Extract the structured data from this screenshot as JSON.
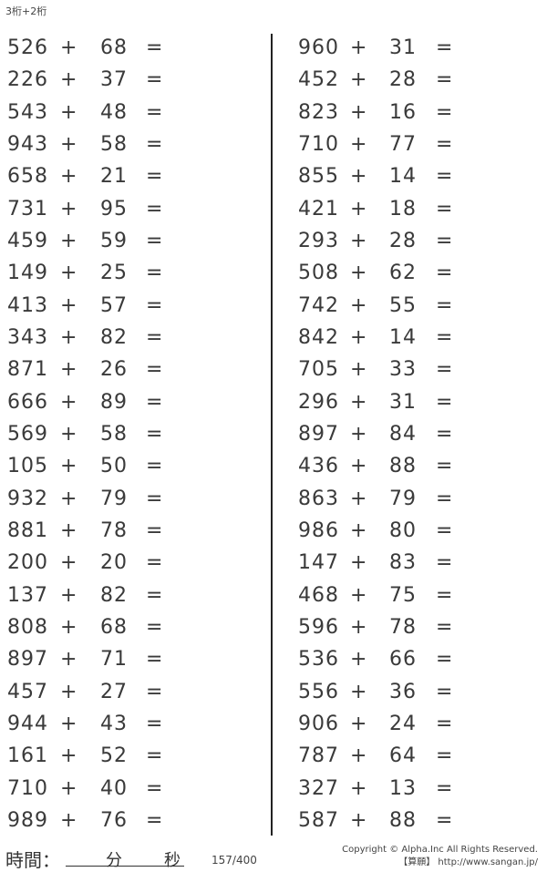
{
  "title": "3桁+2桁",
  "operator": "+",
  "equals": "=",
  "left_column": [
    [
      "526",
      "68"
    ],
    [
      "226",
      "37"
    ],
    [
      "543",
      "48"
    ],
    [
      "943",
      "58"
    ],
    [
      "658",
      "21"
    ],
    [
      "731",
      "95"
    ],
    [
      "459",
      "59"
    ],
    [
      "149",
      "25"
    ],
    [
      "413",
      "57"
    ],
    [
      "343",
      "82"
    ],
    [
      "871",
      "26"
    ],
    [
      "666",
      "89"
    ],
    [
      "569",
      "58"
    ],
    [
      "105",
      "50"
    ],
    [
      "932",
      "79"
    ],
    [
      "881",
      "78"
    ],
    [
      "200",
      "20"
    ],
    [
      "137",
      "82"
    ],
    [
      "808",
      "68"
    ],
    [
      "897",
      "71"
    ],
    [
      "457",
      "27"
    ],
    [
      "944",
      "43"
    ],
    [
      "161",
      "52"
    ],
    [
      "710",
      "40"
    ],
    [
      "989",
      "76"
    ]
  ],
  "right_column": [
    [
      "960",
      "31"
    ],
    [
      "452",
      "28"
    ],
    [
      "823",
      "16"
    ],
    [
      "710",
      "77"
    ],
    [
      "855",
      "14"
    ],
    [
      "421",
      "18"
    ],
    [
      "293",
      "28"
    ],
    [
      "508",
      "62"
    ],
    [
      "742",
      "55"
    ],
    [
      "842",
      "14"
    ],
    [
      "705",
      "33"
    ],
    [
      "296",
      "31"
    ],
    [
      "897",
      "84"
    ],
    [
      "436",
      "88"
    ],
    [
      "863",
      "79"
    ],
    [
      "986",
      "80"
    ],
    [
      "147",
      "83"
    ],
    [
      "468",
      "75"
    ],
    [
      "596",
      "78"
    ],
    [
      "536",
      "66"
    ],
    [
      "556",
      "36"
    ],
    [
      "906",
      "24"
    ],
    [
      "787",
      "64"
    ],
    [
      "327",
      "13"
    ],
    [
      "587",
      "88"
    ]
  ],
  "footer": {
    "time_label": "時間：",
    "minutes": "分",
    "seconds": "秒",
    "page": "157/400",
    "copyright": "Copyright © Alpha.Inc All Rights Reserved.",
    "site": "【算願】 http://www.sangan.jp/"
  }
}
